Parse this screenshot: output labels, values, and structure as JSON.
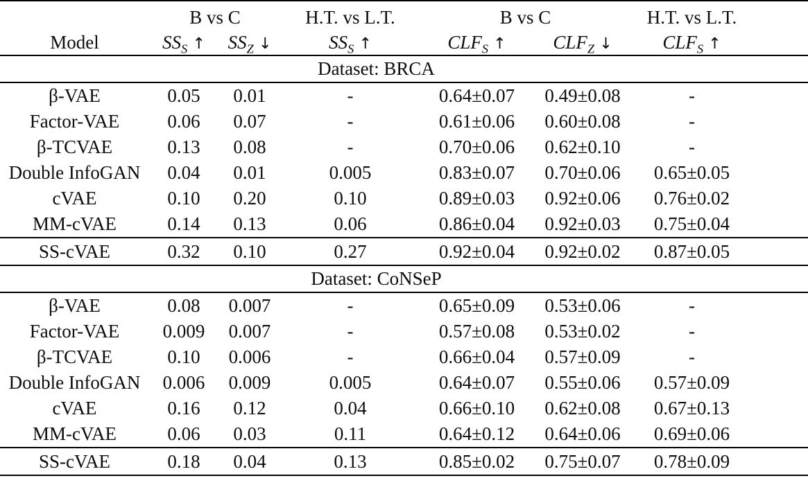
{
  "table": {
    "header": {
      "model_label": "Model",
      "groups": [
        {
          "label": "B vs C",
          "span": 2
        },
        {
          "label": "H.T. vs L.T.",
          "span": 1
        },
        {
          "label": "B vs C",
          "span": 2
        },
        {
          "label": "H.T. vs L.T.",
          "span": 1
        }
      ],
      "metrics": [
        {
          "base": "SS",
          "sub": "S",
          "arrow": "↑"
        },
        {
          "base": "SS",
          "sub": "Z",
          "arrow": "↓"
        },
        {
          "base": "SS",
          "sub": "S",
          "arrow": "↑"
        },
        {
          "base": "CLF",
          "sub": "S",
          "arrow": "↑"
        },
        {
          "base": "CLF",
          "sub": "Z",
          "arrow": "↓"
        },
        {
          "base": "CLF",
          "sub": "S",
          "arrow": "↑"
        }
      ]
    },
    "sections": [
      {
        "dataset_label": "Dataset: BRCA",
        "rows": [
          {
            "model": "β-VAE",
            "values": [
              "0.05",
              "0.01",
              "-",
              "0.64±0.07",
              "0.49±0.08",
              "-"
            ]
          },
          {
            "model": "Factor-VAE",
            "values": [
              "0.06",
              "0.07",
              "-",
              "0.61±0.06",
              "0.60±0.08",
              "-"
            ]
          },
          {
            "model": "β-TCVAE",
            "values": [
              "0.13",
              "0.08",
              "-",
              "0.70±0.06",
              "0.62±0.10",
              "-"
            ]
          },
          {
            "model": "Double InfoGAN",
            "values": [
              "0.04",
              "0.01",
              "0.005",
              "0.83±0.07",
              "0.70±0.06",
              "0.65±0.05"
            ]
          },
          {
            "model": "cVAE",
            "values": [
              "0.10",
              "0.20",
              "0.10",
              "0.89±0.03",
              "0.92±0.06",
              "0.76±0.02"
            ]
          },
          {
            "model": "MM-cVAE",
            "values": [
              "0.14",
              "0.13",
              "0.06",
              "0.86±0.04",
              "0.92±0.03",
              "0.75±0.04"
            ]
          }
        ],
        "highlight_row": {
          "model": "SS-cVAE",
          "values": [
            "0.32",
            "0.10",
            "0.27",
            "0.92±0.04",
            "0.92±0.02",
            "0.87±0.05"
          ]
        }
      },
      {
        "dataset_label": "Dataset: CoNSeP",
        "rows": [
          {
            "model": "β-VAE",
            "values": [
              "0.08",
              "0.007",
              "-",
              "0.65±0.09",
              "0.53±0.06",
              "-"
            ]
          },
          {
            "model": "Factor-VAE",
            "values": [
              "0.009",
              "0.007",
              "-",
              "0.57±0.08",
              "0.53±0.02",
              "-"
            ]
          },
          {
            "model": "β-TCVAE",
            "values": [
              "0.10",
              "0.006",
              "-",
              "0.66±0.04",
              "0.57±0.09",
              "-"
            ]
          },
          {
            "model": "Double InfoGAN",
            "values": [
              "0.006",
              "0.009",
              "0.005",
              "0.64±0.07",
              "0.55±0.06",
              "0.57±0.09"
            ]
          },
          {
            "model": "cVAE",
            "values": [
              "0.16",
              "0.12",
              "0.04",
              "0.66±0.10",
              "0.62±0.08",
              "0.67±0.13"
            ]
          },
          {
            "model": "MM-cVAE",
            "values": [
              "0.06",
              "0.03",
              "0.11",
              "0.64±0.12",
              "0.64±0.06",
              "0.69±0.06"
            ]
          }
        ],
        "highlight_row": {
          "model": "SS-cVAE",
          "values": [
            "0.18",
            "0.04",
            "0.13",
            "0.85±0.02",
            "0.75±0.07",
            "0.78±0.09"
          ]
        }
      }
    ]
  }
}
